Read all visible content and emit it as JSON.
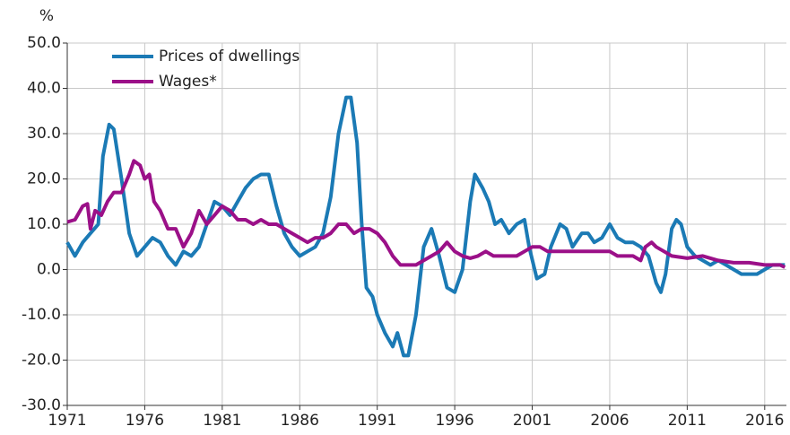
{
  "chart_data": {
    "type": "line",
    "y_label": "%",
    "xlim": [
      1971,
      2017.4
    ],
    "ylim": [
      -30,
      50
    ],
    "xticks": [
      1971,
      1976,
      1981,
      1986,
      1991,
      1996,
      2001,
      2006,
      2011,
      2016
    ],
    "yticks": [
      {
        "value": -30,
        "label": "-30.0"
      },
      {
        "value": -20,
        "label": "-20.0"
      },
      {
        "value": -10,
        "label": "-10.0"
      },
      {
        "value": 0,
        "label": "0.0"
      },
      {
        "value": 10,
        "label": "10.0"
      },
      {
        "value": 20,
        "label": "20.0"
      },
      {
        "value": 30,
        "label": "30.0"
      },
      {
        "value": 40,
        "label": "40.0"
      },
      {
        "value": 50,
        "label": "50.0"
      }
    ],
    "grid": true,
    "legend": "upper left",
    "series": [
      {
        "name": "Prices of dwellings",
        "color": "#1b7ab5",
        "x": [
          1971.0,
          1971.5,
          1972.0,
          1972.5,
          1973.0,
          1973.3,
          1973.7,
          1974.0,
          1974.5,
          1975.0,
          1975.5,
          1976.0,
          1976.5,
          1977.0,
          1977.5,
          1978.0,
          1978.5,
          1979.0,
          1979.5,
          1980.0,
          1980.5,
          1981.0,
          1981.5,
          1982.0,
          1982.5,
          1983.0,
          1983.5,
          1984.0,
          1984.5,
          1985.0,
          1985.5,
          1986.0,
          1986.5,
          1987.0,
          1987.5,
          1988.0,
          1988.5,
          1989.0,
          1989.3,
          1989.7,
          1990.0,
          1990.3,
          1990.7,
          1991.0,
          1991.5,
          1992.0,
          1992.3,
          1992.7,
          1993.0,
          1993.5,
          1994.0,
          1994.5,
          1995.0,
          1995.5,
          1996.0,
          1996.5,
          1997.0,
          1997.3,
          1997.8,
          1998.2,
          1998.6,
          1999.0,
          1999.5,
          2000.0,
          2000.5,
          2000.8,
          2001.3,
          2001.8,
          2002.2,
          2002.8,
          2003.2,
          2003.6,
          2004.2,
          2004.6,
          2005.0,
          2005.5,
          2006.0,
          2006.5,
          2007.0,
          2007.5,
          2008.0,
          2008.5,
          2009.0,
          2009.3,
          2009.6,
          2010.0,
          2010.3,
          2010.6,
          2011.0,
          2011.5,
          2012.0,
          2012.5,
          2013.0,
          2013.5,
          2014.0,
          2014.5,
          2015.0,
          2015.5,
          2016.0,
          2016.5,
          2017.0,
          2017.3
        ],
        "values": [
          6,
          3,
          6,
          8,
          10,
          25,
          32,
          31,
          20,
          8,
          3,
          5,
          7,
          6,
          3,
          1,
          4,
          3,
          5,
          10,
          15,
          14,
          12,
          15,
          18,
          20,
          21,
          21,
          14,
          8,
          5,
          3,
          4,
          5,
          8,
          16,
          30,
          38,
          38,
          28,
          10,
          -4,
          -6,
          -10,
          -14,
          -17,
          -14,
          -19,
          -19,
          -10,
          5,
          9,
          3,
          -4,
          -5,
          0,
          15,
          21,
          18,
          15,
          10,
          11,
          8,
          10,
          11,
          5,
          -2,
          -1,
          5,
          10,
          9,
          5,
          8,
          8,
          6,
          7,
          10,
          7,
          6,
          6,
          5,
          3,
          -3,
          -5,
          -1,
          9,
          11,
          10,
          5,
          3,
          2,
          1,
          2,
          1,
          0,
          -1,
          -1,
          -1,
          0,
          1,
          1,
          1
        ]
      },
      {
        "name": "Wages*",
        "color": "#9b1088",
        "x": [
          1971.0,
          1971.5,
          1972.0,
          1972.3,
          1972.5,
          1972.8,
          1973.2,
          1973.6,
          1974.0,
          1974.5,
          1975.0,
          1975.3,
          1975.7,
          1976.0,
          1976.3,
          1976.6,
          1977.0,
          1977.5,
          1978.0,
          1978.5,
          1979.0,
          1979.5,
          1980.0,
          1980.5,
          1981.0,
          1981.5,
          1982.0,
          1982.5,
          1983.0,
          1983.5,
          1984.0,
          1984.5,
          1985.0,
          1985.5,
          1986.0,
          1986.5,
          1987.0,
          1987.5,
          1988.0,
          1988.5,
          1989.0,
          1989.5,
          1990.0,
          1990.5,
          1991.0,
          1991.5,
          1992.0,
          1992.5,
          1993.0,
          1993.5,
          1994.0,
          1994.5,
          1995.0,
          1995.5,
          1996.0,
          1996.5,
          1997.0,
          1997.5,
          1998.0,
          1998.5,
          1999.0,
          1999.5,
          2000.0,
          2000.5,
          2001.0,
          2001.5,
          2002.0,
          2002.5,
          2003.0,
          2004.0,
          2005.0,
          2006.0,
          2006.5,
          2007.0,
          2007.5,
          2008.0,
          2008.3,
          2008.7,
          2009.0,
          2009.5,
          2010.0,
          2011.0,
          2012.0,
          2013.0,
          2014.0,
          2015.0,
          2016.0,
          2016.5,
          2017.0,
          2017.3
        ],
        "values": [
          10.5,
          11,
          14,
          14.5,
          9,
          13,
          12,
          15,
          17,
          17,
          21,
          24,
          23,
          20,
          21,
          15,
          13,
          9,
          9,
          5,
          8,
          13,
          10,
          12,
          14,
          13,
          11,
          11,
          10,
          11,
          10,
          10,
          9,
          8,
          7,
          6,
          7,
          7,
          8,
          10,
          10,
          8,
          9,
          9,
          8,
          6,
          3,
          1,
          1,
          1,
          2,
          3,
          4,
          6,
          4,
          3,
          2.5,
          3,
          4,
          3,
          3,
          3,
          3,
          4,
          5,
          5,
          4,
          4,
          4,
          4,
          4,
          4,
          3,
          3,
          3,
          2,
          5,
          6,
          5,
          4,
          3,
          2.5,
          3,
          2,
          1.5,
          1.5,
          1,
          1,
          1,
          0.5
        ]
      }
    ]
  }
}
